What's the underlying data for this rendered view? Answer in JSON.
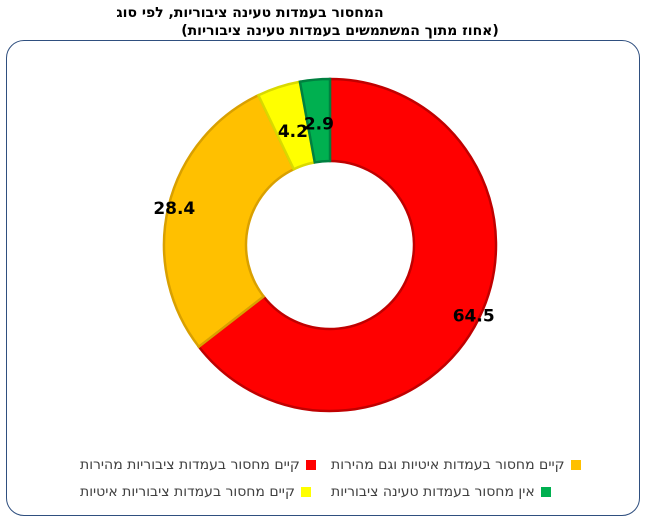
{
  "chart_data": {
    "type": "pie",
    "title": "המחסור בעמדות טעינה ציבוריות, לפי סוג",
    "subtitle": "(אחוז מתוך המשתמשים בעמדות טעינה ציבוריות)",
    "series": [
      {
        "name": "קיים מחסור בעמדות ציבוריות מהירות",
        "value": 64.5,
        "label": "64.5",
        "color": "#ff0000"
      },
      {
        "name": "קיים מחסור בעמדות איטיות וגם מהירות",
        "value": 28.4,
        "label": "28.4",
        "color": "#ffc000"
      },
      {
        "name": "קיים מחסור בעמדות ציבוריות איטיות",
        "value": 4.2,
        "label": "4.2",
        "color": "#ffff00"
      },
      {
        "name": "אין מחסור בעמדות טעינה ציבוריות",
        "value": 2.9,
        "label": "2.9",
        "color": "#00b050"
      }
    ],
    "legend_position": "bottom"
  }
}
